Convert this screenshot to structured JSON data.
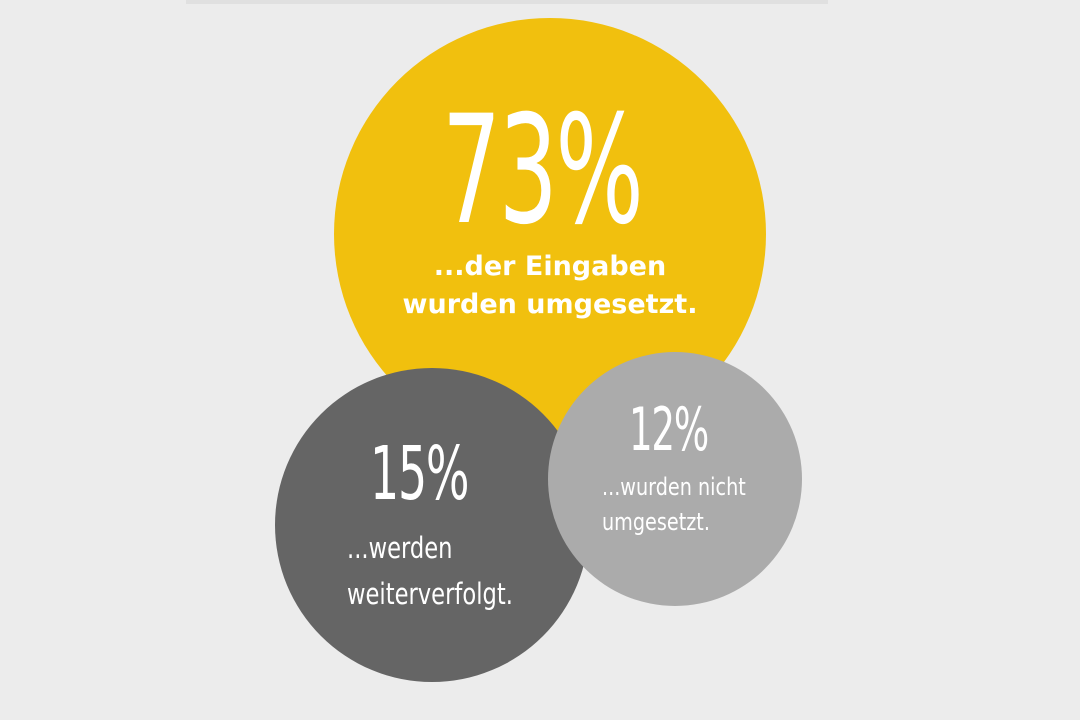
{
  "chart_data": {
    "type": "bubble",
    "title": "",
    "series": [
      {
        "value": 73,
        "value_label": "73%",
        "label_lines": [
          "...der Eingaben",
          "wurden umgesetzt."
        ],
        "color": "#f1c00e"
      },
      {
        "value": 15,
        "value_label": "15%",
        "label_lines": [
          "...werden",
          "weiterverfolgt."
        ],
        "color": "#656565"
      },
      {
        "value": 12,
        "value_label": "12%",
        "label_lines": [
          "...wurden nicht",
          "umgesetzt."
        ],
        "color": "#ababab"
      }
    ],
    "background_color": "#ececec",
    "text_color": "#ffffff"
  }
}
